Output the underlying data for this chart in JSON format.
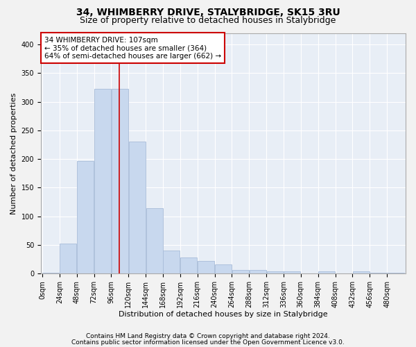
{
  "title": "34, WHIMBERRY DRIVE, STALYBRIDGE, SK15 3RU",
  "subtitle": "Size of property relative to detached houses in Stalybridge",
  "xlabel": "Distribution of detached houses by size in Stalybridge",
  "ylabel": "Number of detached properties",
  "bar_color": "#c8d8ee",
  "bar_edge_color": "#a8bcd8",
  "bg_color": "#e8eef6",
  "fig_bg_color": "#f2f2f2",
  "grid_color": "#ffffff",
  "vline_x": 107,
  "vline_color": "#cc0000",
  "bin_width": 24,
  "bin_starts": [
    0,
    24,
    48,
    72,
    96,
    120,
    144,
    168,
    192,
    216,
    240,
    264,
    288,
    312,
    336,
    360,
    384,
    408,
    432,
    456,
    480
  ],
  "counts": [
    2,
    52,
    196,
    322,
    322,
    230,
    114,
    40,
    28,
    22,
    16,
    7,
    7,
    4,
    4,
    0,
    4,
    0,
    4,
    2,
    2
  ],
  "ylim": [
    0,
    420
  ],
  "yticks": [
    0,
    50,
    100,
    150,
    200,
    250,
    300,
    350,
    400
  ],
  "annotation_text": "34 WHIMBERRY DRIVE: 107sqm\n← 35% of detached houses are smaller (364)\n64% of semi-detached houses are larger (662) →",
  "annotation_box_color": "#ffffff",
  "annotation_box_edge": "#cc0000",
  "footer_line1": "Contains HM Land Registry data © Crown copyright and database right 2024.",
  "footer_line2": "Contains public sector information licensed under the Open Government Licence v3.0.",
  "title_fontsize": 10,
  "subtitle_fontsize": 9,
  "tick_label_fontsize": 7,
  "ylabel_fontsize": 8,
  "xlabel_fontsize": 8,
  "annotation_fontsize": 7.5,
  "footer_fontsize": 6.5,
  "font_family": "DejaVu Sans"
}
